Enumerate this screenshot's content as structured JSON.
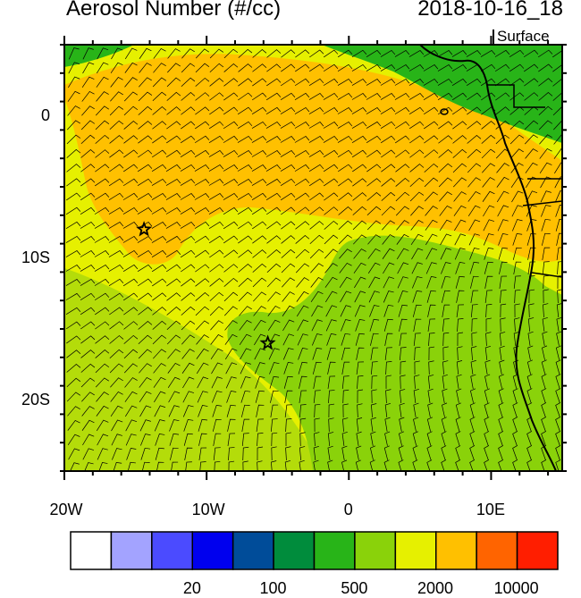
{
  "header": {
    "title": "Aerosol Number (#/cc)",
    "datetime": "2018-10-16_18",
    "level": "Surface"
  },
  "map": {
    "lon_range": [
      -20,
      15
    ],
    "lat_range": [
      -25,
      5
    ],
    "y_ticks": [
      {
        "lat": 0,
        "label": "0"
      },
      {
        "lat": -10,
        "label": "10S"
      },
      {
        "lat": -20,
        "label": "20S"
      }
    ],
    "x_ticks": [
      {
        "lon": -20,
        "label": "20W"
      },
      {
        "lon": -10,
        "label": "10W"
      },
      {
        "lon": 0,
        "label": "0"
      },
      {
        "lon": 10,
        "label": "10E"
      }
    ],
    "markers": [
      {
        "lon": -14.4,
        "lat": -8.0,
        "symbol": "star"
      },
      {
        "lon": -5.7,
        "lat": -16.0,
        "symbol": "star"
      }
    ]
  },
  "colorbar": {
    "colors": [
      "#ffffff",
      "#a3a3ff",
      "#4b4bff",
      "#0000ee",
      "#004c99",
      "#008c3c",
      "#28b418",
      "#8ad20a",
      "#e6f000",
      "#ffc000",
      "#ff6400",
      "#ff1e00"
    ],
    "labels": [
      {
        "after_box": 2,
        "text": "20"
      },
      {
        "after_box": 4,
        "text": "100"
      },
      {
        "after_box": 6,
        "text": "500"
      },
      {
        "after_box": 8,
        "text": "2000"
      },
      {
        "after_box": 10,
        "text": "10000"
      }
    ]
  },
  "field_colors": {
    "low": "#28b418",
    "mid_low": "#8ad20a",
    "mid": "#c8e600",
    "high": "#e6f000",
    "very_high": "#ffc000",
    "land_green": "#008c3c",
    "hot": "#ff1e00"
  }
}
